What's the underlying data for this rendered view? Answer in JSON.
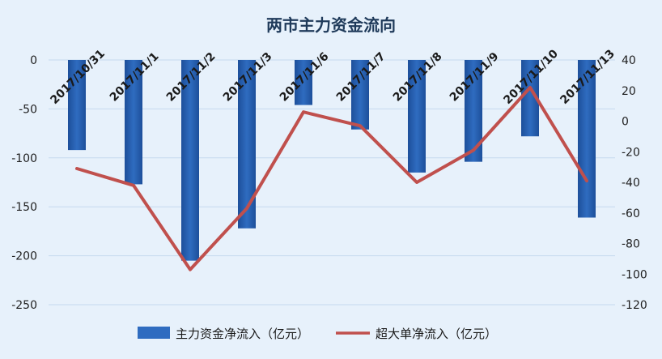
{
  "chart_data": {
    "type": "bar",
    "title": "两市主力资金流向",
    "categories": [
      "2017/10/31",
      "2017/11/1",
      "2017/11/2",
      "2017/11/3",
      "2017/11/6",
      "2017/11/7",
      "2017/11/8",
      "2017/11/9",
      "2017/11/10",
      "2017/11/13"
    ],
    "series": [
      {
        "name": "主力资金净流入（亿元）",
        "type": "bar",
        "axis": "left",
        "color": "#2f6cc0",
        "values": [
          -92,
          -127,
          -205,
          -172,
          -46,
          -71,
          -115,
          -104,
          -78,
          -161
        ]
      },
      {
        "name": "超大单净流入（亿元）",
        "type": "line",
        "axis": "right",
        "color": "#c0504d",
        "values": [
          -31,
          -42,
          -97,
          -57,
          6,
          -3,
          -40,
          -19,
          22,
          -39
        ]
      }
    ],
    "y_left": {
      "ylim": [
        -250,
        0
      ],
      "ticks": [
        0,
        -50,
        -100,
        -150,
        -200,
        -250
      ]
    },
    "y_right": {
      "ylim": [
        -120,
        40
      ],
      "ticks": [
        40,
        20,
        0,
        -20,
        -40,
        -60,
        -80,
        -100,
        -120
      ]
    },
    "grid": true,
    "legend_position": "bottom"
  }
}
